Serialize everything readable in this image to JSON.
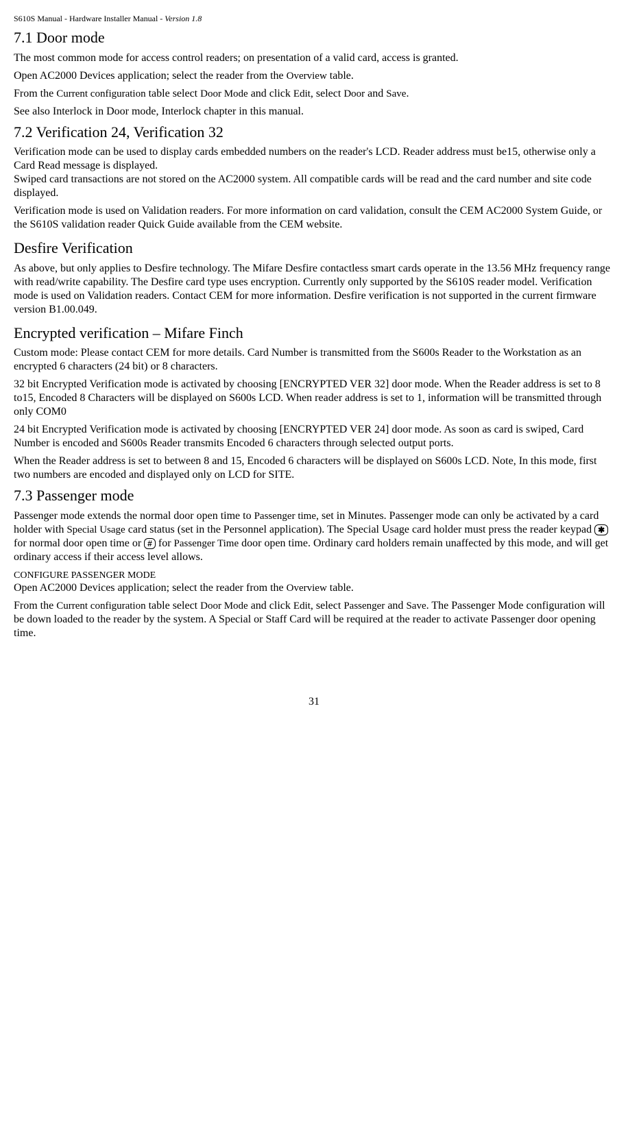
{
  "header": {
    "product": "S610S Manual",
    "subtitle": " - Hardware Installer Manual ",
    "version": " - Version 1.8"
  },
  "sec71": {
    "title": "7.1   Door mode",
    "p1": "The most common mode for access control readers; on presentation of a valid card, access is granted.",
    "p2a": "Open AC2000 Devices application; select the reader from the ",
    "p2b": "Overview",
    "p2c": " table.",
    "p3a": "From the ",
    "p3b": "Current configuration",
    "p3c": " table select ",
    "p3d": "Door Mode",
    "p3e": " and click ",
    "p3f": "Edit",
    "p3g": ", select ",
    "p3h": "Door",
    "p3i": " and ",
    "p3j": "Save",
    "p3k": ".",
    "p4": "See also Interlock in Door mode, Interlock chapter in this manual."
  },
  "sec72": {
    "title": "7.2   Verification 24, Verification 32",
    "p1": "Verification mode can be used to display cards embedded numbers on the reader's LCD. Reader address must be15, otherwise only a Card Read message is displayed.",
    "p2": "Swiped card transactions are not stored on the AC2000 system.  All compatible cards will be read and the card number and site code displayed.",
    "p3": "Verification mode is used on Validation readers.  For more information on card validation, consult the CEM AC2000 System Guide, or the S610S validation reader Quick Guide available from the CEM website."
  },
  "desfire": {
    "title": "Desfire Verification",
    "p1": "As above, but only applies to Desfire technology.  The Mifare Desfire contactless smart cards operate in the 13.56 MHz frequency range with read/write capability.  The Desfire card type uses encryption.  Currently only supported by the S610S reader model.  Verification mode is used on Validation readers.  Contact CEM for more information.  Desfire verification is not supported in the current firmware version B1.00.049."
  },
  "encrypted": {
    "title": "Encrypted verification – Mifare Finch",
    "p1": "Custom mode: Please contact CEM for more details.  Card Number is transmitted from the S600s Reader to the Workstation as an encrypted 6 characters (24 bit) or 8 characters.",
    "p2": "32 bit Encrypted Verification mode is activated by choosing [ENCRYPTED VER 32] door mode.  When the Reader address is set to 8 to15, Encoded 8 Characters will be displayed on S600s LCD.  When reader address is set to 1, information will be transmitted through only COM0",
    "p3": "24 bit Encrypted Verification mode is activated by choosing [ENCRYPTED VER 24] door mode.  As soon as card is swiped, Card Number is encoded and S600s Reader transmits Encoded 6 characters through selected output ports.",
    "p4": "When the Reader address is set to between 8 and 15, Encoded 6 characters will be displayed on S600s LCD.  Note, In this mode, first two numbers are encoded and displayed only on LCD for SITE."
  },
  "sec73": {
    "title": "7.3   Passenger mode",
    "p1a": "Passenger mode extends the normal door open time to ",
    "p1b": "Passenger time",
    "p1c": ", set in Minutes.  Passenger mode can only be activated by a card holder with ",
    "p1d": "Special Usage",
    "p1e": " card status (set in the Personnel application).  The Special Usage card holder must press the reader keypad ",
    "star": "✱",
    "p1f": "  for normal door open time or ",
    "hash": "#",
    "p1g": " for ",
    "p1h": "Passenger Time",
    "p1i": " door open time.  Ordinary card holders remain unaffected by this mode, and will get ordinary access if their access level allows.",
    "configTitle": "CONFIGURE PASSENGER MODE",
    "p2a": "Open AC2000 Devices application; select the reader from the ",
    "p2b": "Overview",
    "p2c": " table.",
    "p3a": "From the ",
    "p3b": "Current configuration",
    "p3c": " table select ",
    "p3d": "Door Mode",
    "p3e": " and click ",
    "p3f": "Edit",
    "p3g": ", select ",
    "p3h": "Passenger",
    "p3i": " and ",
    "p3j": "Save",
    "p3k": ". The Passenger Mode configuration will be down loaded to the reader by the system.  A Special or Staff Card will be required at the reader to activate Passenger door opening time."
  },
  "pageNumber": "31"
}
